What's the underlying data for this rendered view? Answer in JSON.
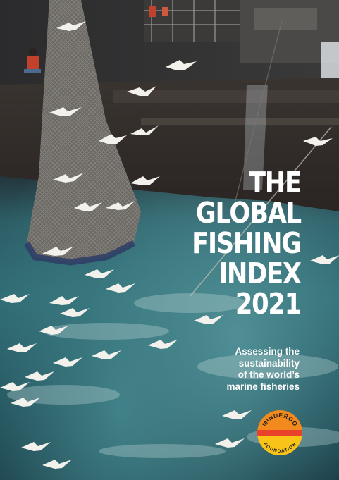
{
  "title_lines": [
    "THE",
    "GLOBAL",
    "FISHING",
    "INDEX",
    "2021"
  ],
  "subtitle_lines": [
    "Assessing the",
    "sustainability",
    "of the world’s",
    "marine fisheries"
  ],
  "logo": {
    "top_text": "MINDEROO",
    "bottom_text": "FOUNDATION",
    "colors": {
      "top": "#f28a1e",
      "bottom": "#f9c318",
      "band": "#e8432a",
      "text": "#1d1d1b"
    }
  },
  "colors": {
    "text": "#ffffff",
    "sea": "#2f6b73",
    "ship": "#2a2a2a"
  }
}
